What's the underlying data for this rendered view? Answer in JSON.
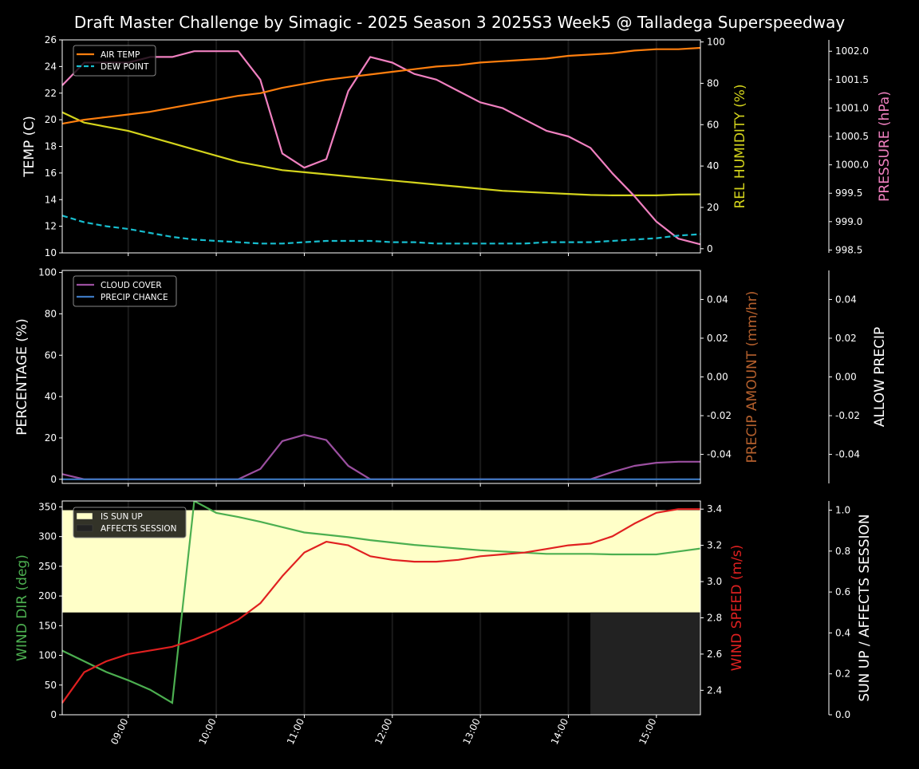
{
  "title": "Draft Master Challenge by Simagic - 2025 Season 3 2025S3 Week5 @ Talladega Superspeedway",
  "x_axis": {
    "ticks": [
      "09:00",
      "10:00",
      "11:00",
      "12:00",
      "13:00",
      "14:00",
      "15:00"
    ],
    "range_hours": [
      8.25,
      15.5
    ]
  },
  "colors": {
    "air_temp": "#ff7f0e",
    "dew_point": "#17becf",
    "humidity": "#d4d41c",
    "pressure": "#f080c0",
    "cloud": "#9b4fa0",
    "precip_chance": "#3c78c0",
    "precip_amount_label": "#b5602d",
    "wind_dir": "#4caf50",
    "wind_speed": "#e02020",
    "sun_up": "#ffffc8",
    "affects_session": "#222222"
  },
  "chart_data": [
    {
      "type": "line",
      "panel": "weather",
      "ylabel": "TEMP (C)",
      "ylabel_right1": "REL HUMIDITY (%)",
      "ylabel_right2": "PRESSURE (hPa)",
      "ylim": [
        10,
        26
      ],
      "ylim_right1": [
        -2,
        101
      ],
      "ylim_right2": [
        998.45,
        1002.2
      ],
      "yticks": [
        "10",
        "12",
        "14",
        "16",
        "18",
        "20",
        "22",
        "24",
        "26"
      ],
      "yticks_right1": [
        "0",
        "20",
        "40",
        "60",
        "80",
        "100"
      ],
      "yticks_right2": [
        "998.5",
        "999.0",
        "999.5",
        "1000.0",
        "1000.5",
        "1001.0",
        "1001.5",
        "1002.0"
      ],
      "legend": [
        "AIR TEMP",
        "DEW POINT"
      ],
      "legend_position": "top-left",
      "x": [
        "08:15",
        "08:30",
        "08:45",
        "09:00",
        "09:15",
        "09:30",
        "09:45",
        "10:00",
        "10:15",
        "10:30",
        "10:45",
        "11:00",
        "11:15",
        "11:30",
        "11:45",
        "12:00",
        "12:15",
        "12:30",
        "12:45",
        "13:00",
        "13:15",
        "13:30",
        "13:45",
        "14:00",
        "14:15",
        "14:30",
        "14:45",
        "15:00",
        "15:15",
        "15:30"
      ],
      "series": [
        {
          "name": "AIR TEMP",
          "axis": "left",
          "values": [
            19.7,
            20.0,
            20.2,
            20.4,
            20.6,
            20.9,
            21.2,
            21.5,
            21.8,
            22.0,
            22.4,
            22.7,
            23.0,
            23.2,
            23.4,
            23.6,
            23.8,
            24.0,
            24.1,
            24.3,
            24.4,
            24.5,
            24.6,
            24.8,
            24.9,
            25.0,
            25.2,
            25.3,
            25.3,
            25.4
          ]
        },
        {
          "name": "DEW POINT",
          "axis": "left",
          "values": [
            12.8,
            12.3,
            12.0,
            11.8,
            11.5,
            11.2,
            11.0,
            10.9,
            10.8,
            10.7,
            10.7,
            10.8,
            10.9,
            10.9,
            10.9,
            10.8,
            10.8,
            10.7,
            10.7,
            10.7,
            10.7,
            10.7,
            10.8,
            10.8,
            10.8,
            10.9,
            11.0,
            11.1,
            11.3,
            11.4
          ]
        },
        {
          "name": "REL HUMIDITY",
          "axis": "right1",
          "values": [
            66,
            61,
            59,
            57,
            54,
            51,
            48,
            45,
            42,
            40,
            38,
            37,
            36,
            35,
            34,
            33,
            32,
            31,
            30,
            29,
            28,
            27.5,
            27,
            26.5,
            26,
            25.8,
            25.8,
            25.8,
            26.2,
            26.3
          ]
        },
        {
          "name": "PRESSURE",
          "axis": "right2",
          "values": [
            1001.4,
            1001.8,
            1001.8,
            1001.8,
            1001.9,
            1001.9,
            1002.0,
            1002.0,
            1002.0,
            1001.5,
            1000.2,
            999.95,
            1000.1,
            1001.3,
            1001.9,
            1001.8,
            1001.6,
            1001.5,
            1001.3,
            1001.1,
            1001.0,
            1000.8,
            1000.6,
            1000.5,
            1000.3,
            999.85,
            999.45,
            999.0,
            998.7,
            998.6
          ]
        }
      ]
    },
    {
      "type": "line",
      "panel": "precip",
      "ylabel": "PERCENTAGE (%)",
      "ylabel_right1": "PRECIP AMOUNT (mm/hr)",
      "ylabel_right2": "ALLOW PRECIP",
      "ylim": [
        -2,
        101
      ],
      "ylim_right1": [
        -0.055,
        0.055
      ],
      "yticks": [
        "0",
        "20",
        "40",
        "60",
        "80",
        "100"
      ],
      "yticks_right1": [
        "-0.04",
        "-0.02",
        "0.00",
        "0.02",
        "0.04"
      ],
      "yticks_right2": [
        "-0.04",
        "-0.02",
        "0.00",
        "0.02",
        "0.04"
      ],
      "legend": [
        "CLOUD COVER",
        "PRECIP CHANCE"
      ],
      "legend_position": "top-left",
      "x": [
        "08:15",
        "08:30",
        "08:45",
        "09:00",
        "09:15",
        "09:30",
        "09:45",
        "10:00",
        "10:15",
        "10:30",
        "10:45",
        "11:00",
        "11:15",
        "11:30",
        "11:45",
        "12:00",
        "12:15",
        "12:30",
        "12:45",
        "13:00",
        "13:15",
        "13:30",
        "13:45",
        "14:00",
        "14:15",
        "14:30",
        "14:45",
        "15:00",
        "15:15",
        "15:30"
      ],
      "series": [
        {
          "name": "CLOUD COVER",
          "values": [
            2.5,
            0,
            0,
            0,
            0,
            0,
            0,
            0,
            0,
            5,
            18.5,
            21.5,
            19,
            6.5,
            0,
            0,
            0,
            0,
            0,
            0,
            0,
            0,
            0,
            0,
            0,
            3.5,
            6.5,
            8,
            8.5,
            8.5
          ]
        },
        {
          "name": "PRECIP CHANCE",
          "values": [
            0,
            0,
            0,
            0,
            0,
            0,
            0,
            0,
            0,
            0,
            0,
            0,
            0,
            0,
            0,
            0,
            0,
            0,
            0,
            0,
            0,
            0,
            0,
            0,
            0,
            0,
            0,
            0,
            0,
            0
          ]
        }
      ]
    },
    {
      "type": "line",
      "panel": "wind",
      "ylabel": "WIND DIR (deg)",
      "ylabel_right1": "WIND SPEED (m/s)",
      "ylabel_right2": "SUN UP / AFFECTS SESSION",
      "ylim": [
        0,
        360
      ],
      "ylim_right1": [
        2.265,
        3.445
      ],
      "ylim_right2": [
        0,
        1.045
      ],
      "yticks": [
        "0",
        "50",
        "100",
        "150",
        "200",
        "250",
        "300",
        "350"
      ],
      "yticks_right1": [
        "2.4",
        "2.6",
        "2.8",
        "3.0",
        "3.2",
        "3.4"
      ],
      "yticks_right2": [
        "0.0",
        "0.2",
        "0.4",
        "0.6",
        "0.8",
        "1.0"
      ],
      "legend": [
        "IS SUN UP",
        "AFFECTS SESSION"
      ],
      "legend_position": "top-left",
      "sun_up_band": {
        "from": "08:15",
        "to": "15:30",
        "low": 0.5,
        "high": 1.0
      },
      "affects_session_band": {
        "from": "14:15",
        "to": "15:30",
        "high": 0.5
      },
      "x": [
        "08:15",
        "08:30",
        "08:45",
        "09:00",
        "09:15",
        "09:30",
        "09:45",
        "10:00",
        "10:15",
        "10:30",
        "10:45",
        "11:00",
        "11:15",
        "11:30",
        "11:45",
        "12:00",
        "12:15",
        "12:30",
        "12:45",
        "13:00",
        "13:15",
        "13:30",
        "13:45",
        "14:00",
        "14:15",
        "14:30",
        "14:45",
        "15:00",
        "15:15",
        "15:30"
      ],
      "series": [
        {
          "name": "WIND DIR",
          "axis": "left",
          "values": [
            108,
            90,
            72,
            58,
            42,
            20,
            360,
            340,
            333,
            325,
            316,
            307,
            303,
            299,
            294,
            290,
            286,
            283,
            280,
            277,
            275,
            273,
            271,
            271,
            271,
            270,
            270,
            270,
            275,
            280
          ]
        },
        {
          "name": "WIND SPEED",
          "axis": "right1",
          "values": [
            2.33,
            2.5,
            2.56,
            2.6,
            2.62,
            2.64,
            2.68,
            2.73,
            2.79,
            2.88,
            3.03,
            3.16,
            3.22,
            3.2,
            3.14,
            3.12,
            3.11,
            3.11,
            3.12,
            3.14,
            3.15,
            3.16,
            3.18,
            3.2,
            3.21,
            3.25,
            3.32,
            3.38,
            3.4,
            3.4
          ]
        }
      ]
    }
  ]
}
